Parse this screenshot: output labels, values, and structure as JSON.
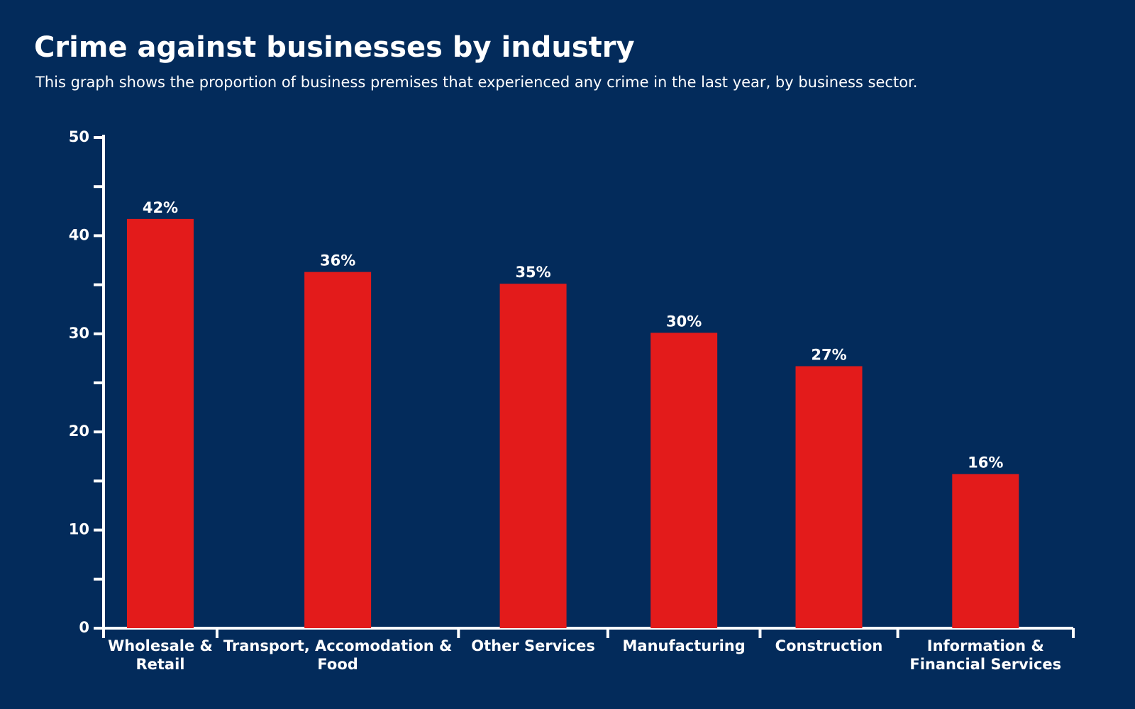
{
  "chart_data": {
    "type": "bar",
    "title": "Crime against businesses by industry",
    "subtitle": "This graph shows the proportion of business premises that experienced any crime in the last year, by business sector.",
    "categories": [
      "Wholesale & Retail",
      "Transport, Accomodation & Food",
      "Other Services",
      "Manufacturing",
      "Construction",
      "Information & Financial Services"
    ],
    "values": [
      41.7,
      36.3,
      35.1,
      30.1,
      26.7,
      15.7
    ],
    "value_labels": [
      "42%",
      "36%",
      "35%",
      "30%",
      "27%",
      "16%"
    ],
    "color": "#e31b1b",
    "ylim": [
      0,
      50
    ],
    "yticks": [
      0,
      10,
      20,
      30,
      40,
      50
    ],
    "yticks_minor": [
      5,
      15,
      25,
      35,
      45
    ],
    "grid": false
  }
}
